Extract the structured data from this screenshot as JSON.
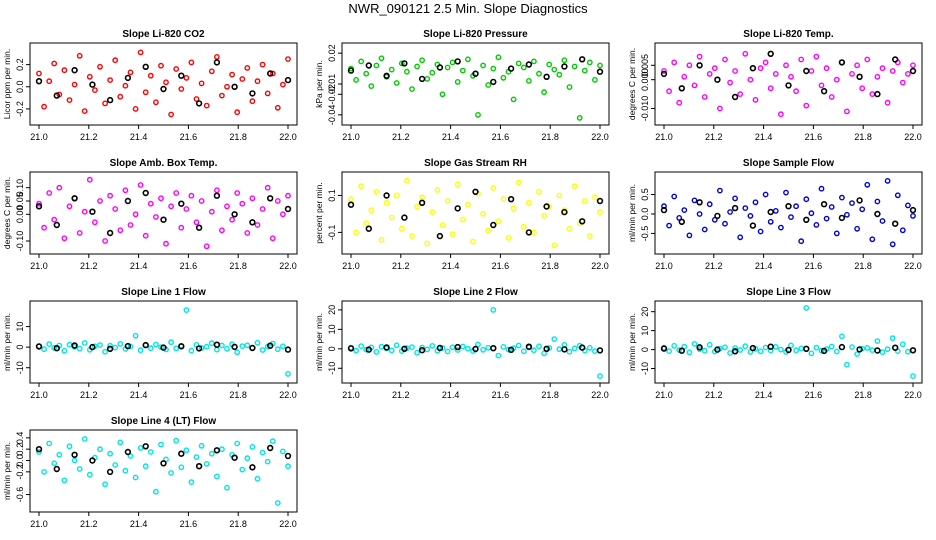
{
  "figure_title": "NWR_090121  2.5 Min. Slope Diagnostics",
  "chart_data": [
    {
      "type": "scatter",
      "title": "Slope Li-820 CO2",
      "ylabel": "Licor ppm per min.",
      "color": "#ff0000",
      "x_range": [
        21.0,
        22.0
      ],
      "ylim": [
        -0.3,
        0.35
      ],
      "x_ticks": [
        "21.0",
        "21.2",
        "21.4",
        "21.6",
        "21.8",
        "22.0"
      ],
      "y_ticks": [
        "-0.2",
        "0.0",
        "0.2"
      ],
      "y_tick_values": [
        -0.2,
        0.0,
        0.2
      ],
      "series": [
        {
          "color": "#ff0000",
          "values": [
            0.12,
            -0.18,
            0.05,
            0.21,
            -0.07,
            0.15,
            -0.12,
            0.02,
            0.28,
            -0.22,
            0.09,
            -0.03,
            0.18,
            -0.15,
            0.06,
            0.24,
            -0.09,
            0.01,
            0.13,
            -0.2,
            0.31,
            -0.05,
            0.1,
            -0.14,
            0.19,
            0.04,
            -0.25,
            0.16,
            -0.02,
            0.08,
            0.22,
            -0.11,
            0.03,
            -0.17,
            0.14,
            0.27,
            -0.08,
            0.0,
            0.11,
            -0.23,
            0.07,
            0.17,
            -0.13,
            0.05,
            0.2,
            -0.06,
            0.12,
            -0.19,
            0.02,
            0.25
          ]
        },
        {
          "color": "#000000",
          "values": [
            0.05,
            -0.08,
            0.15,
            0.02,
            -0.12,
            0.08,
            0.18,
            -0.02,
            0.1,
            -0.15,
            0.22,
            0.0,
            -0.06,
            0.12,
            0.06
          ]
        }
      ]
    },
    {
      "type": "scatter",
      "title": "Slope Li-820 Pressure",
      "ylabel": "kPa per min.",
      "color": "#00cc00",
      "x_range": [
        21.0,
        22.0
      ],
      "ylim": [
        -0.045,
        0.025
      ],
      "x_ticks": [
        "21.0",
        "21.2",
        "21.4",
        "21.6",
        "21.8",
        "22.0"
      ],
      "y_ticks": [
        "-0.04",
        "-0.02",
        "-0.01",
        "0.02"
      ],
      "y_tick_values": [
        -0.04,
        -0.02,
        -0.01,
        0.02
      ],
      "series": [
        {
          "color": "#00cc00",
          "values": [
            0.005,
            -0.006,
            0.012,
            0.0,
            -0.012,
            0.008,
            0.015,
            -0.003,
            0.004,
            -0.009,
            0.01,
            0.002,
            -0.015,
            0.007,
            0.013,
            -0.005,
            0.001,
            0.009,
            -0.02,
            0.006,
            0.011,
            -0.008,
            0.003,
            0.014,
            -0.002,
            -0.04,
            0.008,
            -0.011,
            0.005,
            0.016,
            -0.004,
            0.002,
            -0.025,
            0.01,
            0.006,
            -0.007,
            0.012,
            0.0,
            -0.018,
            0.009,
            0.004,
            -0.001,
            0.013,
            -0.013,
            0.007,
            -0.043,
            0.003,
            0.011,
            -0.006,
            0.008
          ]
        },
        {
          "color": "#000000",
          "values": [
            0.003,
            0.008,
            -0.002,
            0.01,
            -0.005,
            0.006,
            0.012,
            0.0,
            -0.008,
            0.005,
            0.009,
            -0.003,
            0.007,
            0.014,
            0.002
          ]
        }
      ]
    },
    {
      "type": "scatter",
      "title": "Slope Li-820 Temp.",
      "ylabel": "degrees C per min.",
      "color": "#ff00ff",
      "x_range": [
        21.0,
        22.0
      ],
      "ylim": [
        -0.014,
        0.011
      ],
      "x_ticks": [
        "21.0",
        "21.2",
        "21.4",
        "21.6",
        "21.8",
        "22.0"
      ],
      "y_ticks": [
        "-0.010",
        "0.000",
        "0.005"
      ],
      "y_tick_values": [
        -0.01,
        0.0,
        0.005
      ],
      "series": [
        {
          "color": "#ff00ff",
          "values": [
            0.003,
            -0.004,
            0.006,
            -0.008,
            0.001,
            0.005,
            -0.002,
            0.008,
            -0.006,
            0.002,
            0.004,
            -0.01,
            0.007,
            -0.001,
            0.003,
            -0.005,
            0.009,
            0.0,
            -0.007,
            0.004,
            0.006,
            -0.003,
            0.002,
            -0.012,
            0.005,
            0.001,
            -0.004,
            0.007,
            -0.009,
            0.003,
            0.008,
            -0.002,
            0.004,
            -0.006,
            0.0,
            0.006,
            -0.011,
            0.002,
            0.005,
            -0.003,
            0.007,
            -0.005,
            0.001,
            0.004,
            -0.008,
            0.003,
            0.006,
            -0.001,
            0.002,
            0.005
          ]
        },
        {
          "color": "#000000",
          "values": [
            0.002,
            -0.003,
            0.005,
            0.0,
            -0.006,
            0.004,
            0.009,
            -0.002,
            0.003,
            -0.004,
            0.006,
            0.001,
            -0.005,
            0.007,
            0.003
          ]
        }
      ]
    },
    {
      "type": "scatter",
      "title": "Slope Amb. Box Temp.",
      "ylabel": "degrees C per min.",
      "color": "#ff00ff",
      "x_range": [
        21.0,
        22.0
      ],
      "ylim": [
        -0.13,
        0.14
      ],
      "x_ticks": [
        "21.0",
        "21.2",
        "21.4",
        "21.6",
        "21.8",
        "22.0"
      ],
      "y_ticks": [
        "-0.10",
        "0.00",
        "0.05",
        "0.10"
      ],
      "y_tick_values": [
        -0.1,
        0.0,
        0.05,
        0.1
      ],
      "series": [
        {
          "color": "#ff00ff",
          "values": [
            0.04,
            -0.05,
            0.08,
            -0.02,
            0.1,
            -0.09,
            0.03,
            0.06,
            -0.07,
            0.01,
            0.13,
            -0.03,
            0.05,
            -0.1,
            0.07,
            0.02,
            -0.06,
            0.09,
            -0.04,
            0.0,
            0.11,
            -0.08,
            0.04,
            -0.01,
            0.06,
            -0.11,
            0.03,
            0.08,
            -0.05,
            0.02,
            0.07,
            -0.03,
            0.05,
            -0.12,
            0.01,
            0.09,
            -0.06,
            0.03,
            -0.02,
            0.08,
            0.04,
            -0.07,
            0.06,
            -0.04,
            0.02,
            0.1,
            -0.09,
            0.05,
            0.0,
            0.07
          ]
        },
        {
          "color": "#000000",
          "values": [
            0.03,
            -0.04,
            0.06,
            0.01,
            -0.07,
            0.05,
            0.08,
            -0.02,
            0.04,
            -0.05,
            0.07,
            0.0,
            -0.03,
            0.06,
            0.02
          ]
        }
      ]
    },
    {
      "type": "scatter",
      "title": "Slope Gas Stream RH",
      "ylabel": "percent per min.",
      "color": "#ffff00",
      "x_range": [
        21.0,
        22.0
      ],
      "ylim": [
        -0.19,
        0.2
      ],
      "x_ticks": [
        "21.0",
        "21.2",
        "21.4",
        "21.6",
        "21.8",
        "22.0"
      ],
      "y_ticks": [
        "-0.1",
        "0.1"
      ],
      "y_tick_values": [
        -0.1,
        0.1
      ],
      "series": [
        {
          "color": "#ffff00",
          "values": [
            0.08,
            -0.1,
            0.15,
            -0.05,
            0.02,
            0.12,
            -0.14,
            0.06,
            -0.02,
            0.1,
            -0.08,
            0.18,
            -0.12,
            0.04,
            0.09,
            -0.16,
            0.01,
            0.13,
            -0.06,
            0.07,
            -0.11,
            0.16,
            -0.03,
            0.05,
            -0.15,
            0.11,
            0.0,
            -0.09,
            0.14,
            -0.04,
            0.08,
            -0.13,
            0.03,
            0.17,
            -0.07,
            0.06,
            -0.1,
            0.12,
            -0.01,
            0.04,
            -0.17,
            0.1,
            0.02,
            -0.08,
            0.15,
            -0.05,
            0.07,
            -0.12,
            0.09,
            0.01
          ]
        },
        {
          "color": "#000000",
          "values": [
            0.05,
            -0.08,
            0.1,
            -0.02,
            0.06,
            -0.12,
            0.03,
            0.12,
            -0.06,
            0.08,
            -0.1,
            0.04,
            0.01,
            -0.04,
            0.07
          ]
        }
      ]
    },
    {
      "type": "scatter",
      "title": "Slope Sample Flow",
      "ylabel": "ml/min per min.",
      "color": "#0000dd",
      "x_range": [
        21.0,
        22.0
      ],
      "ylim": [
        -0.9,
        0.95
      ],
      "x_ticks": [
        "21.0",
        "21.2",
        "21.4",
        "21.6",
        "21.8",
        "22.0"
      ],
      "y_ticks": [
        "-0.5",
        "0.0",
        "0.5"
      ],
      "y_tick_values": [
        -0.5,
        0.0,
        0.5
      ],
      "series": [
        {
          "color": "#0000dd",
          "values": [
            0.2,
            -0.3,
            0.45,
            -0.1,
            0.1,
            -0.55,
            0.35,
            0.0,
            -0.4,
            0.25,
            -0.15,
            0.6,
            -0.25,
            0.05,
            0.4,
            -0.6,
            0.15,
            -0.05,
            0.3,
            -0.45,
            0.5,
            -0.2,
            0.08,
            -0.35,
            0.55,
            -0.08,
            0.2,
            -0.7,
            0.38,
            0.02,
            -0.28,
            0.65,
            -0.12,
            0.18,
            -0.5,
            0.42,
            -0.02,
            0.28,
            -0.38,
            0.12,
            0.75,
            -0.65,
            0.32,
            -0.18,
            0.85,
            -0.78,
            0.48,
            -0.42,
            0.22,
            -0.05
          ]
        },
        {
          "color": "#000000",
          "values": [
            0.1,
            -0.2,
            0.3,
            -0.05,
            0.15,
            -0.3,
            0.05,
            0.2,
            -0.15,
            0.25,
            -0.1,
            0.35,
            0.0,
            -0.25,
            0.1
          ]
        }
      ]
    },
    {
      "type": "scatter",
      "title": "Slope Line 1 Flow",
      "ylabel": "ml/min per min.",
      "color": "#00e5e5",
      "x_range": [
        21.0,
        22.0
      ],
      "ylim": [
        -15.0,
        20.0
      ],
      "x_ticks": [
        "21.0",
        "21.2",
        "21.4",
        "21.6",
        "21.8",
        "22.0"
      ],
      "y_ticks": [
        "-10",
        "0",
        "10"
      ],
      "y_tick_values": [
        -10,
        0,
        10
      ],
      "series": [
        {
          "color": "#00e5e5",
          "values": [
            0.5,
            -1.0,
            1.5,
            -0.3,
            0.8,
            -1.8,
            1.2,
            0.1,
            -0.7,
            2.0,
            -1.3,
            0.4,
            1.0,
            -2.2,
            0.7,
            -0.2,
            1.6,
            -0.9,
            0.3,
            5.5,
            -1.5,
            0.9,
            -0.5,
            1.3,
            0.0,
            -1.1,
            2.4,
            -0.6,
            0.6,
            18.0,
            -1.7,
            1.1,
            -0.4,
            0.2,
            1.9,
            -1.2,
            0.8,
            -0.8,
            1.4,
            -2.5,
            0.5,
            0.9,
            -0.3,
            2.1,
            -1.4,
            0.2,
            1.7,
            -1.0,
            0.4,
            -13.0
          ]
        },
        {
          "color": "#000000",
          "values": [
            0.3,
            -0.5,
            0.8,
            0.0,
            -0.8,
            0.5,
            1.0,
            -0.2,
            0.4,
            -0.6,
            1.2,
            0.1,
            -0.4,
            0.7,
            -1.2
          ]
        }
      ]
    },
    {
      "type": "scatter",
      "title": "Slope Line 2 Flow",
      "ylabel": "ml/min per min.",
      "color": "#00e5e5",
      "x_range": [
        21.0,
        22.0
      ],
      "ylim": [
        -15.0,
        22.0
      ],
      "x_ticks": [
        "21.0",
        "21.2",
        "21.4",
        "21.6",
        "21.8",
        "22.0"
      ],
      "y_ticks": [
        "-10",
        "0",
        "10",
        "20"
      ],
      "y_tick_values": [
        -10,
        0,
        10,
        20
      ],
      "series": [
        {
          "color": "#00e5e5",
          "values": [
            0.6,
            -0.9,
            1.4,
            -0.4,
            0.7,
            -1.6,
            1.1,
            0.2,
            -0.8,
            1.8,
            -1.2,
            0.3,
            0.9,
            -2.0,
            0.6,
            -0.3,
            1.5,
            -1.0,
            0.4,
            -1.4,
            0.8,
            -0.6,
            1.2,
            0.1,
            -1.1,
            2.2,
            -0.5,
            0.5,
            20.0,
            -3.5,
            1.0,
            -0.4,
            0.3,
            1.7,
            -1.3,
            0.7,
            -0.7,
            1.3,
            -2.3,
            0.4,
            5.0,
            -0.2,
            2.0,
            -1.5,
            0.2,
            1.6,
            -0.9,
            0.5,
            -1.2,
            -14.0
          ]
        },
        {
          "color": "#000000",
          "values": [
            0.2,
            -0.4,
            0.7,
            0.0,
            -0.7,
            0.4,
            0.9,
            -0.1,
            0.3,
            -0.5,
            1.1,
            0.0,
            -0.3,
            0.6,
            -0.8
          ]
        }
      ]
    },
    {
      "type": "scatter",
      "title": "Slope Line 3 Flow",
      "ylabel": "ml/min per min.",
      "color": "#00e5e5",
      "x_range": [
        21.0,
        22.0
      ],
      "ylim": [
        -15.0,
        23.0
      ],
      "x_ticks": [
        "21.0",
        "21.2",
        "21.4",
        "21.6",
        "21.8",
        "22.0"
      ],
      "y_ticks": [
        "-10",
        "0",
        "10",
        "20"
      ],
      "y_tick_values": [
        -10,
        0,
        10,
        20
      ],
      "series": [
        {
          "color": "#00e5e5",
          "values": [
            1.0,
            -0.8,
            2.0,
            -0.3,
            1.5,
            -1.5,
            3.0,
            0.2,
            -0.6,
            2.5,
            -1.0,
            0.5,
            1.2,
            -1.8,
            0.8,
            -0.2,
            1.8,
            -1.2,
            0.4,
            -0.9,
            1.1,
            -0.5,
            1.4,
            0.0,
            -1.3,
            2.2,
            -0.4,
            0.6,
            22.0,
            -2.0,
            1.0,
            -0.6,
            0.3,
            1.6,
            -1.0,
            7.0,
            -8.0,
            1.3,
            -2.4,
            0.5,
            0.9,
            -0.3,
            4.5,
            -1.4,
            0.2,
            6.0,
            -0.8,
            2.8,
            -1.1,
            -14.0
          ]
        },
        {
          "color": "#000000",
          "values": [
            0.5,
            -0.6,
            1.2,
            0.0,
            -0.9,
            0.8,
            1.5,
            -0.2,
            0.4,
            -0.7,
            1.3,
            0.1,
            -0.5,
            1.0,
            -0.4
          ]
        }
      ]
    },
    {
      "type": "scatter",
      "title": "Slope Line 4 (LT) Flow",
      "ylabel": "ml/min per min.",
      "color": "#00e5e5",
      "x_range": [
        21.0,
        22.0
      ],
      "ylim": [
        -0.82,
        0.45
      ],
      "x_ticks": [
        "21.0",
        "21.2",
        "21.4",
        "21.6",
        "21.8",
        "22.0"
      ],
      "y_ticks": [
        "-0.6",
        "-0.2",
        "0.0",
        "0.2",
        "0.4"
      ],
      "y_tick_values": [
        -0.6,
        -0.2,
        0.0,
        0.2,
        0.4
      ],
      "series": [
        {
          "color": "#00e5e5",
          "values": [
            0.15,
            -0.2,
            0.3,
            -0.05,
            0.1,
            -0.35,
            0.25,
            0.0,
            -0.15,
            0.38,
            -0.25,
            0.05,
            0.2,
            -0.42,
            0.12,
            -0.08,
            0.32,
            -0.18,
            0.08,
            -0.3,
            0.22,
            -0.1,
            0.15,
            -0.55,
            0.28,
            0.02,
            -0.22,
            0.35,
            -0.12,
            0.18,
            -0.38,
            0.06,
            0.26,
            -0.06,
            0.12,
            -0.28,
            0.2,
            -0.48,
            0.1,
            0.3,
            -0.16,
            0.04,
            0.24,
            -0.32,
            0.14,
            -0.02,
            0.34,
            -0.75,
            0.16,
            -0.1
          ]
        },
        {
          "color": "#000000",
          "values": [
            0.2,
            -0.15,
            0.1,
            0.0,
            -0.2,
            0.15,
            0.25,
            -0.05,
            0.12,
            -0.1,
            0.18,
            0.05,
            -0.12,
            0.22,
            0.08
          ]
        }
      ]
    }
  ]
}
